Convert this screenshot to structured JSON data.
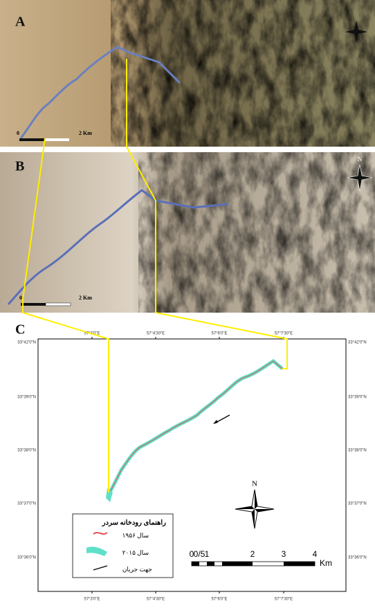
{
  "panels": {
    "a": {
      "label": "A",
      "scale": [
        "0",
        "2 Km"
      ]
    },
    "b": {
      "label": "B",
      "scale": [
        "0",
        "2 Km"
      ],
      "north": "N"
    },
    "c": {
      "label": "C",
      "north": "N",
      "top_ticks": [
        "57°3'0\"E",
        "57°4'30\"E",
        "57°6'0\"E",
        "57°7'30\"E"
      ],
      "bottom_ticks": [
        "57°3'0\"E",
        "57°4'30\"E",
        "57°6'0\"E",
        "57°7'30\"E"
      ],
      "left_ticks": [
        "33°42'0\"N",
        "33°39'0\"N",
        "33°38'0\"N",
        "33°37'0\"N",
        "33°36'0\"N"
      ],
      "right_ticks": [
        "33°42'0\"N",
        "33°39'0\"N",
        "33°38'0\"N",
        "33°37'0\"N",
        "33°36'0\"N"
      ],
      "legend": {
        "title": "راهنمای رودخانه سردر",
        "items": [
          "سال ۱۹۵۶",
          "سال ۲۰۱۵",
          "جهت جریان"
        ]
      },
      "scale_bar": {
        "labels": [
          "0",
          "0/5",
          "1",
          "2",
          "3",
          "4"
        ],
        "unit": "Km"
      }
    }
  }
}
